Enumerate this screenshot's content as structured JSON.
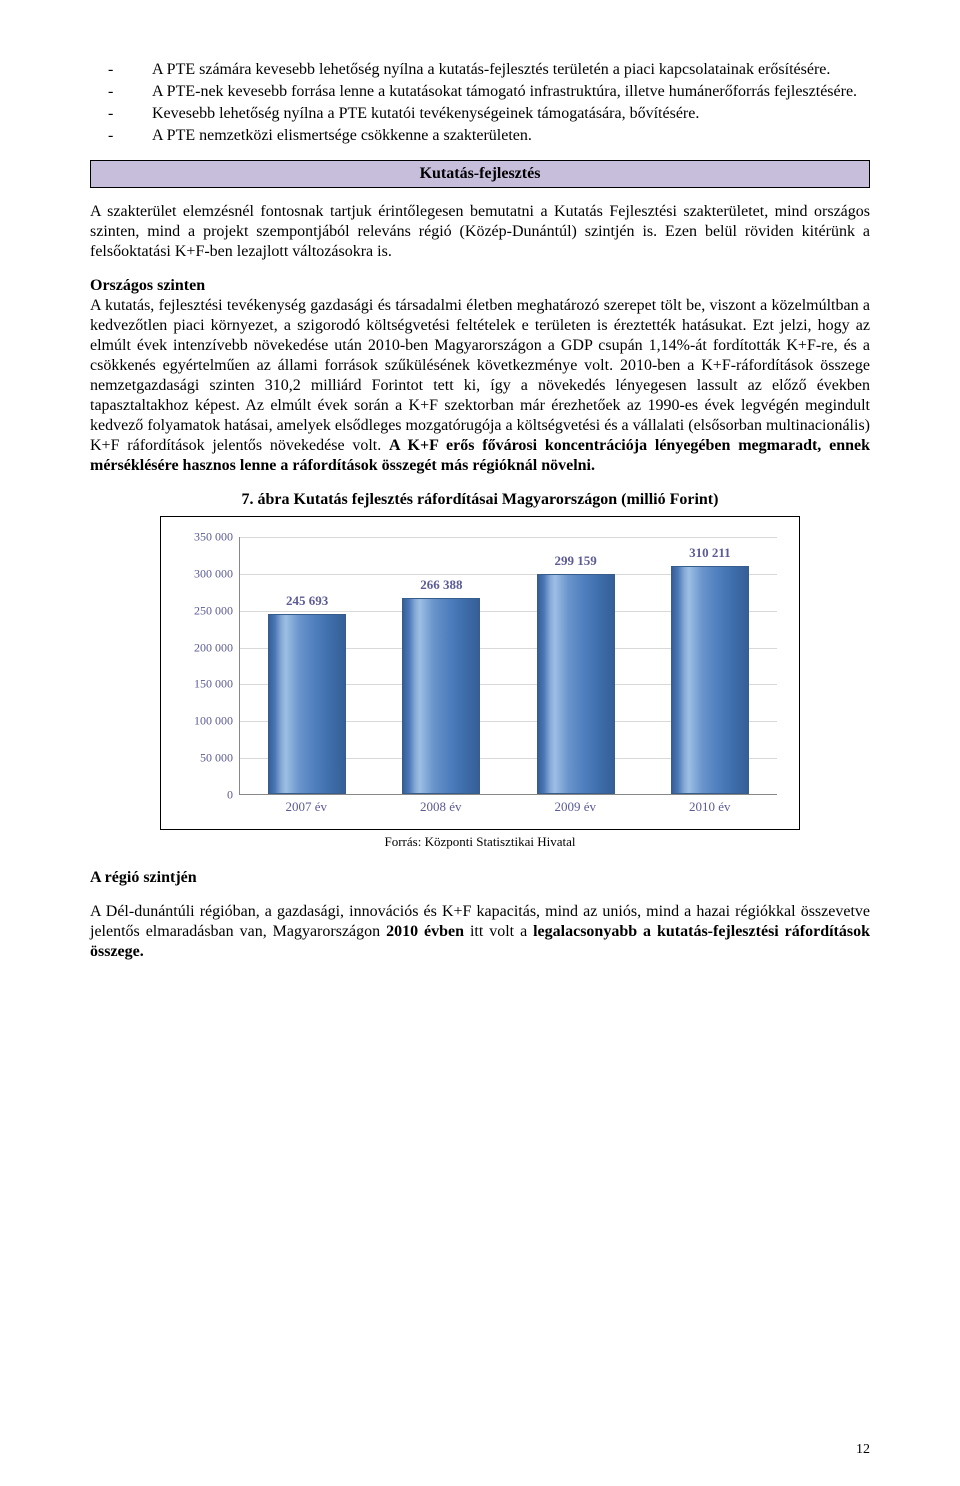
{
  "bullets": [
    "A PTE számára kevesebb lehetőség nyílna a kutatás-fejlesztés területén a piaci kapcsolatainak erősítésére.",
    "A PTE-nek kevesebb forrása lenne a kutatásokat támogató infrastruktúra, illetve humánerőforrás fejlesztésére.",
    "Kevesebb lehetőség nyílna a PTE kutatói tevékenységeinek támogatására, bővítésére.",
    "A PTE nemzetközi elismertsége csökkenne a szakterületen."
  ],
  "section_band": "Kutatás-fejlesztés",
  "para1": "A szakterület elemzésnél fontosnak tartjuk érintőlegesen bemutatni a Kutatás Fejlesztési szakterületet, mind országos szinten, mind a projekt szempontjából releváns régió (Közép-Dunántúl) szintjén is. Ezen belül röviden kitérünk a felsőoktatási K+F-ben lezajlott változásokra is.",
  "para2_heading": "Országos szinten",
  "para2_a": "A kutatás, fejlesztési tevékenység gazdasági és társadalmi életben meghatározó szerepet tölt be, viszont a közelmúltban a kedvezőtlen piaci környezet, a szigorodó költségvetési feltételek e területen is éreztették hatásukat. Ezt jelzi, hogy az elmúlt évek intenzívebb növekedése után 2010-ben Magyarországon a GDP csupán 1,14%-át fordították K+F-re, és a csökkenés egyértelműen az állami források szűkülésének következménye volt. 2010-ben a K+F-ráfordítások összege nemzetgazdasági szinten 310,2 milliárd Forintot tett ki, így a növekedés lényegesen lassult az előző években tapasztaltakhoz képest. Az elmúlt évek során a K+F szektorban már érezhetőek az 1990-es évek legvégén megindult kedvező folyamatok hatásai, amelyek elsődleges mozgatórugója a költségvetési és a vállalati (elsősorban multinacionális) K+F ráfordítások jelentős növekedése volt. ",
  "para2_b": "A K+F erős fővárosi koncentrációja lényegében megmaradt, ennek mérséklésére hasznos lenne a ráfordítások összegét más régióknál növelni.",
  "chart": {
    "title": "7. ábra Kutatás fejlesztés ráfordításai Magyarországon (millió Forint)",
    "categories": [
      "2007 év",
      "2008 év",
      "2009 év",
      "2010 év"
    ],
    "values": [
      245693,
      266388,
      299159,
      310211
    ],
    "value_labels": [
      "245 693",
      "266 388",
      "299 159",
      "310 211"
    ],
    "ymax": 350000,
    "ytick_step": 50000,
    "ytick_labels": [
      "0",
      "50 000",
      "100 000",
      "150 000",
      "200 000",
      "250 000",
      "300 000",
      "350 000"
    ],
    "source": "Forrás: Központi Statisztikai Hivatal"
  },
  "para3_heading": "A régió szintjén",
  "para3_a": "A Dél-dunántúli régióban, a gazdasági, innovációs és K+F kapacitás, mind az uniós, mind a hazai régiókkal összevetve jelentős elmaradásban van, Magyarországon ",
  "para3_b": "2010 évben",
  "para3_c": " itt volt a ",
  "para3_d": "legalacsonyabb a kutatás-fejlesztési ráfordítások összege.",
  "page_number": "12"
}
